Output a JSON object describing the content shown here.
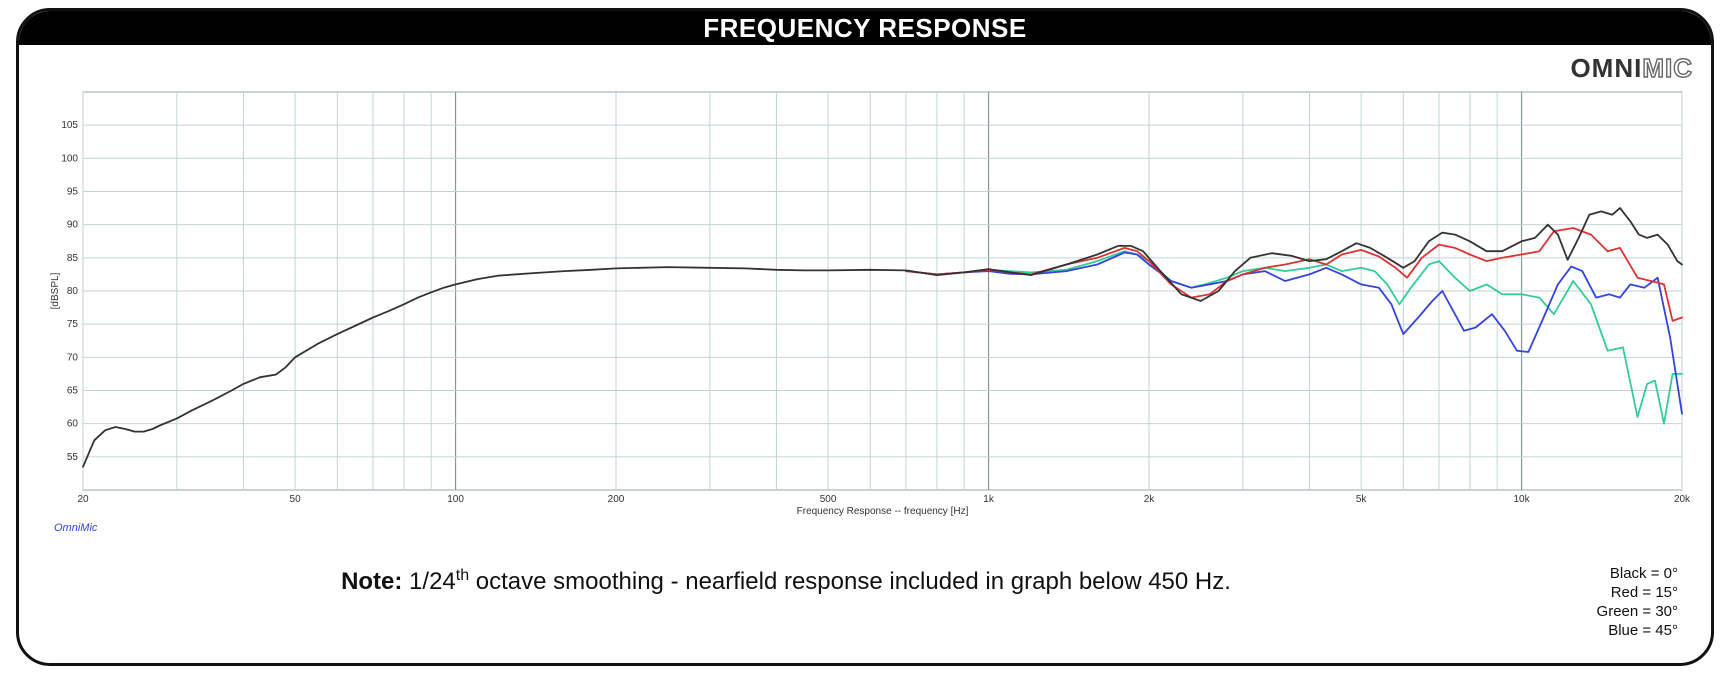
{
  "header": {
    "title": "FREQUENCY RESPONSE"
  },
  "brand": {
    "part1": "OMNI",
    "part2": "MIC"
  },
  "software_label": "OmniMic",
  "note": {
    "prefix": "Note:",
    "text1": " 1/24",
    "sup": "th",
    "text2": " octave smoothing - nearfield response included in graph below 450 Hz."
  },
  "legend": [
    {
      "label": "Black = 0°",
      "color": "#333333"
    },
    {
      "label": "Red = 15°",
      "color": "#dd3333"
    },
    {
      "label": "Green = 30°",
      "color": "#33cc99"
    },
    {
      "label": "Blue = 45°",
      "color": "#3344dd"
    }
  ],
  "chart_data": {
    "type": "line",
    "title": "FREQUENCY RESPONSE",
    "xlabel": "Frequency Response -- frequency [Hz]",
    "ylabel": "[dBSPL]",
    "x_scale": "log",
    "xlim": [
      20,
      20000
    ],
    "ylim": [
      50,
      110
    ],
    "x_ticks": [
      {
        "v": 20,
        "label": "20"
      },
      {
        "v": 50,
        "label": "50"
      },
      {
        "v": 100,
        "label": "100"
      },
      {
        "v": 200,
        "label": "200"
      },
      {
        "v": 500,
        "label": "500"
      },
      {
        "v": 1000,
        "label": "1k"
      },
      {
        "v": 2000,
        "label": "2k"
      },
      {
        "v": 5000,
        "label": "5k"
      },
      {
        "v": 10000,
        "label": "10k"
      },
      {
        "v": 20000,
        "label": "20k"
      }
    ],
    "y_ticks": [
      {
        "v": 55,
        "label": "55"
      },
      {
        "v": 60,
        "label": "60"
      },
      {
        "v": 65,
        "label": "65"
      },
      {
        "v": 70,
        "label": "70"
      },
      {
        "v": 75,
        "label": "75"
      },
      {
        "v": 80,
        "label": "80"
      },
      {
        "v": 85,
        "label": "85"
      },
      {
        "v": 90,
        "label": "90"
      },
      {
        "v": 95,
        "label": "95"
      },
      {
        "v": 100,
        "label": "100"
      },
      {
        "v": 105,
        "label": "105"
      }
    ],
    "grid": true,
    "series": [
      {
        "name": "Green = 30°",
        "color": "#33cc99",
        "points": [
          [
            700,
            83
          ],
          [
            800,
            82.5
          ],
          [
            900,
            82.8
          ],
          [
            1000,
            83.2
          ],
          [
            1100,
            83
          ],
          [
            1200,
            82.8
          ],
          [
            1400,
            83.2
          ],
          [
            1600,
            84.5
          ],
          [
            1800,
            86
          ],
          [
            1900,
            85.5
          ],
          [
            2000,
            84.5
          ],
          [
            2200,
            81.5
          ],
          [
            2400,
            80.5
          ],
          [
            2600,
            81.2
          ],
          [
            2800,
            82
          ],
          [
            3000,
            83
          ],
          [
            3300,
            83.5
          ],
          [
            3600,
            83
          ],
          [
            4000,
            83.5
          ],
          [
            4300,
            84
          ],
          [
            4600,
            83
          ],
          [
            5000,
            83.5
          ],
          [
            5300,
            83
          ],
          [
            5600,
            81
          ],
          [
            5900,
            78
          ],
          [
            6200,
            80.5
          ],
          [
            6700,
            84
          ],
          [
            7000,
            84.5
          ],
          [
            7500,
            82
          ],
          [
            8000,
            80
          ],
          [
            8600,
            81
          ],
          [
            9200,
            79.5
          ],
          [
            10000,
            79.5
          ],
          [
            10800,
            79
          ],
          [
            11500,
            76.5
          ],
          [
            12500,
            81.5
          ],
          [
            13500,
            78
          ],
          [
            14500,
            71
          ],
          [
            15500,
            71.5
          ],
          [
            16500,
            61
          ],
          [
            17200,
            66
          ],
          [
            17800,
            66.5
          ],
          [
            18500,
            60
          ],
          [
            19200,
            67.5
          ],
          [
            20000,
            67.5
          ]
        ]
      },
      {
        "name": "Blue = 45°",
        "color": "#3344dd",
        "points": [
          [
            700,
            83
          ],
          [
            800,
            82.5
          ],
          [
            900,
            82.8
          ],
          [
            1000,
            83
          ],
          [
            1100,
            82.6
          ],
          [
            1200,
            82.5
          ],
          [
            1400,
            83
          ],
          [
            1600,
            84
          ],
          [
            1800,
            85.8
          ],
          [
            1900,
            85.5
          ],
          [
            2000,
            84
          ],
          [
            2200,
            81.5
          ],
          [
            2400,
            80.5
          ],
          [
            2600,
            81
          ],
          [
            2800,
            81.5
          ],
          [
            3000,
            82.5
          ],
          [
            3300,
            83
          ],
          [
            3600,
            81.5
          ],
          [
            4000,
            82.5
          ],
          [
            4300,
            83.5
          ],
          [
            4600,
            82.5
          ],
          [
            5000,
            81
          ],
          [
            5400,
            80.5
          ],
          [
            5700,
            78
          ],
          [
            6000,
            73.5
          ],
          [
            6400,
            76
          ],
          [
            6800,
            78.5
          ],
          [
            7100,
            80
          ],
          [
            7500,
            76.5
          ],
          [
            7800,
            74
          ],
          [
            8200,
            74.5
          ],
          [
            8800,
            76.5
          ],
          [
            9300,
            74
          ],
          [
            9800,
            71
          ],
          [
            10300,
            70.8
          ],
          [
            11000,
            76
          ],
          [
            11700,
            81
          ],
          [
            12400,
            83.7
          ],
          [
            13000,
            83
          ],
          [
            13800,
            79
          ],
          [
            14600,
            79.5
          ],
          [
            15300,
            79
          ],
          [
            16000,
            81
          ],
          [
            17000,
            80.5
          ],
          [
            18000,
            82
          ],
          [
            19000,
            73
          ],
          [
            20000,
            61.5
          ]
        ]
      },
      {
        "name": "Red = 15°",
        "color": "#dd3333",
        "points": [
          [
            700,
            83
          ],
          [
            800,
            82.5
          ],
          [
            900,
            82.8
          ],
          [
            1000,
            83.2
          ],
          [
            1100,
            82.8
          ],
          [
            1200,
            82.5
          ],
          [
            1400,
            84
          ],
          [
            1600,
            85
          ],
          [
            1800,
            86.5
          ],
          [
            1900,
            86
          ],
          [
            2000,
            84.5
          ],
          [
            2200,
            81
          ],
          [
            2400,
            79
          ],
          [
            2600,
            79.5
          ],
          [
            2800,
            81.5
          ],
          [
            3000,
            82.5
          ],
          [
            3300,
            83.5
          ],
          [
            3600,
            84
          ],
          [
            4000,
            84.8
          ],
          [
            4300,
            84
          ],
          [
            4600,
            85.5
          ],
          [
            5000,
            86.2
          ],
          [
            5400,
            85.2
          ],
          [
            5800,
            83.5
          ],
          [
            6100,
            82
          ],
          [
            6500,
            85
          ],
          [
            7000,
            87
          ],
          [
            7500,
            86.5
          ],
          [
            8000,
            85.5
          ],
          [
            8600,
            84.5
          ],
          [
            9200,
            85
          ],
          [
            10000,
            85.5
          ],
          [
            10800,
            86
          ],
          [
            11500,
            89
          ],
          [
            12500,
            89.5
          ],
          [
            13500,
            88.5
          ],
          [
            14500,
            86
          ],
          [
            15300,
            86.5
          ],
          [
            16500,
            82
          ],
          [
            17500,
            81.5
          ],
          [
            18500,
            81
          ],
          [
            19200,
            75.5
          ],
          [
            20000,
            76
          ]
        ]
      },
      {
        "name": "Black = 0°",
        "color": "#333333",
        "points": [
          [
            20,
            53.5
          ],
          [
            21,
            57.5
          ],
          [
            22,
            59
          ],
          [
            23,
            59.5
          ],
          [
            24,
            59.2
          ],
          [
            25,
            58.8
          ],
          [
            26,
            58.8
          ],
          [
            27,
            59.2
          ],
          [
            28,
            59.8
          ],
          [
            30,
            60.8
          ],
          [
            32,
            62
          ],
          [
            35,
            63.5
          ],
          [
            38,
            65
          ],
          [
            40,
            66
          ],
          [
            43,
            67
          ],
          [
            46,
            67.4
          ],
          [
            48,
            68.5
          ],
          [
            50,
            70
          ],
          [
            55,
            72
          ],
          [
            60,
            73.5
          ],
          [
            65,
            74.8
          ],
          [
            70,
            76
          ],
          [
            75,
            77
          ],
          [
            80,
            78
          ],
          [
            85,
            79
          ],
          [
            90,
            79.8
          ],
          [
            95,
            80.5
          ],
          [
            100,
            81
          ],
          [
            110,
            81.8
          ],
          [
            120,
            82.3
          ],
          [
            140,
            82.7
          ],
          [
            160,
            83
          ],
          [
            180,
            83.2
          ],
          [
            200,
            83.4
          ],
          [
            250,
            83.6
          ],
          [
            300,
            83.5
          ],
          [
            350,
            83.4
          ],
          [
            400,
            83.2
          ],
          [
            450,
            83.1
          ],
          [
            500,
            83.1
          ],
          [
            600,
            83.2
          ],
          [
            700,
            83.1
          ],
          [
            800,
            82.4
          ],
          [
            900,
            82.8
          ],
          [
            1000,
            83.3
          ],
          [
            1100,
            82.8
          ],
          [
            1200,
            82.4
          ],
          [
            1400,
            84
          ],
          [
            1600,
            85.5
          ],
          [
            1750,
            86.8
          ],
          [
            1850,
            86.8
          ],
          [
            1950,
            86
          ],
          [
            2100,
            83
          ],
          [
            2300,
            79.5
          ],
          [
            2500,
            78.5
          ],
          [
            2700,
            80
          ],
          [
            2900,
            83
          ],
          [
            3100,
            85
          ],
          [
            3400,
            85.7
          ],
          [
            3700,
            85.3
          ],
          [
            4000,
            84.5
          ],
          [
            4300,
            84.8
          ],
          [
            4600,
            86
          ],
          [
            4900,
            87.2
          ],
          [
            5200,
            86.5
          ],
          [
            5600,
            85
          ],
          [
            6000,
            83.5
          ],
          [
            6300,
            84.5
          ],
          [
            6700,
            87.5
          ],
          [
            7100,
            88.8
          ],
          [
            7500,
            88.5
          ],
          [
            8000,
            87.5
          ],
          [
            8600,
            86
          ],
          [
            9200,
            86
          ],
          [
            10000,
            87.5
          ],
          [
            10600,
            88
          ],
          [
            11200,
            90
          ],
          [
            11700,
            88.5
          ],
          [
            12200,
            84.7
          ],
          [
            12800,
            88
          ],
          [
            13400,
            91.5
          ],
          [
            14100,
            92
          ],
          [
            14800,
            91.5
          ],
          [
            15300,
            92.5
          ],
          [
            16000,
            90.5
          ],
          [
            16600,
            88.5
          ],
          [
            17200,
            88
          ],
          [
            18000,
            88.5
          ],
          [
            18800,
            87
          ],
          [
            19600,
            84.5
          ],
          [
            20000,
            84
          ]
        ]
      }
    ]
  }
}
